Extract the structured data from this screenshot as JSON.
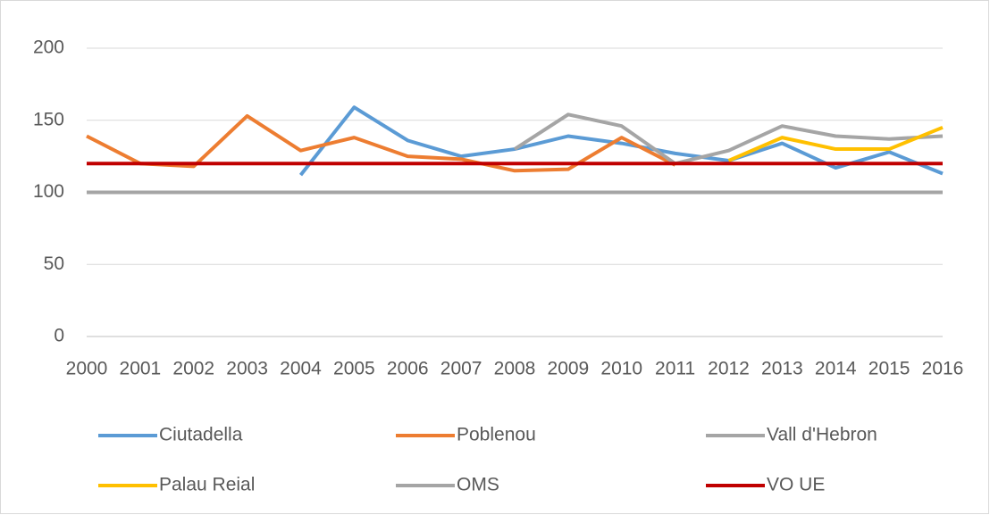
{
  "chart_data": {
    "type": "line",
    "categories": [
      "2000",
      "2001",
      "2002",
      "2003",
      "2004",
      "2005",
      "2006",
      "2007",
      "2008",
      "2009",
      "2010",
      "2011",
      "2012",
      "2013",
      "2014",
      "2015",
      "2016"
    ],
    "series": [
      {
        "name": "Ciutadella",
        "color": "#5b9bd5",
        "values": [
          null,
          null,
          null,
          null,
          112,
          159,
          136,
          125,
          130,
          139,
          134,
          127,
          122,
          134,
          117,
          128,
          113
        ]
      },
      {
        "name": "Poblenou",
        "color": "#ed7d31",
        "values": [
          139,
          120,
          118,
          153,
          129,
          138,
          125,
          123,
          115,
          116,
          138,
          119,
          null,
          null,
          null,
          null,
          null
        ]
      },
      {
        "name": "Vall d'Hebron",
        "color": "#a5a5a5",
        "values": [
          null,
          null,
          null,
          null,
          null,
          null,
          null,
          null,
          130,
          154,
          146,
          120,
          129,
          146,
          139,
          137,
          139
        ]
      },
      {
        "name": "Palau Reial",
        "color": "#ffc000",
        "values": [
          null,
          null,
          null,
          null,
          null,
          null,
          null,
          null,
          null,
          null,
          null,
          null,
          122,
          138,
          130,
          130,
          145
        ]
      },
      {
        "name": "OMS",
        "color": "#a5a5a5",
        "values": [
          100,
          100,
          100,
          100,
          100,
          100,
          100,
          100,
          100,
          100,
          100,
          100,
          100,
          100,
          100,
          100,
          100
        ]
      },
      {
        "name": "VO UE",
        "color": "#c00000",
        "values": [
          120,
          120,
          120,
          120,
          120,
          120,
          120,
          120,
          120,
          120,
          120,
          120,
          120,
          120,
          120,
          120,
          120
        ]
      }
    ],
    "ylim": [
      0,
      200
    ],
    "yticks": [
      0,
      50,
      100,
      150,
      200
    ],
    "grid": true,
    "legend": "bottom"
  }
}
